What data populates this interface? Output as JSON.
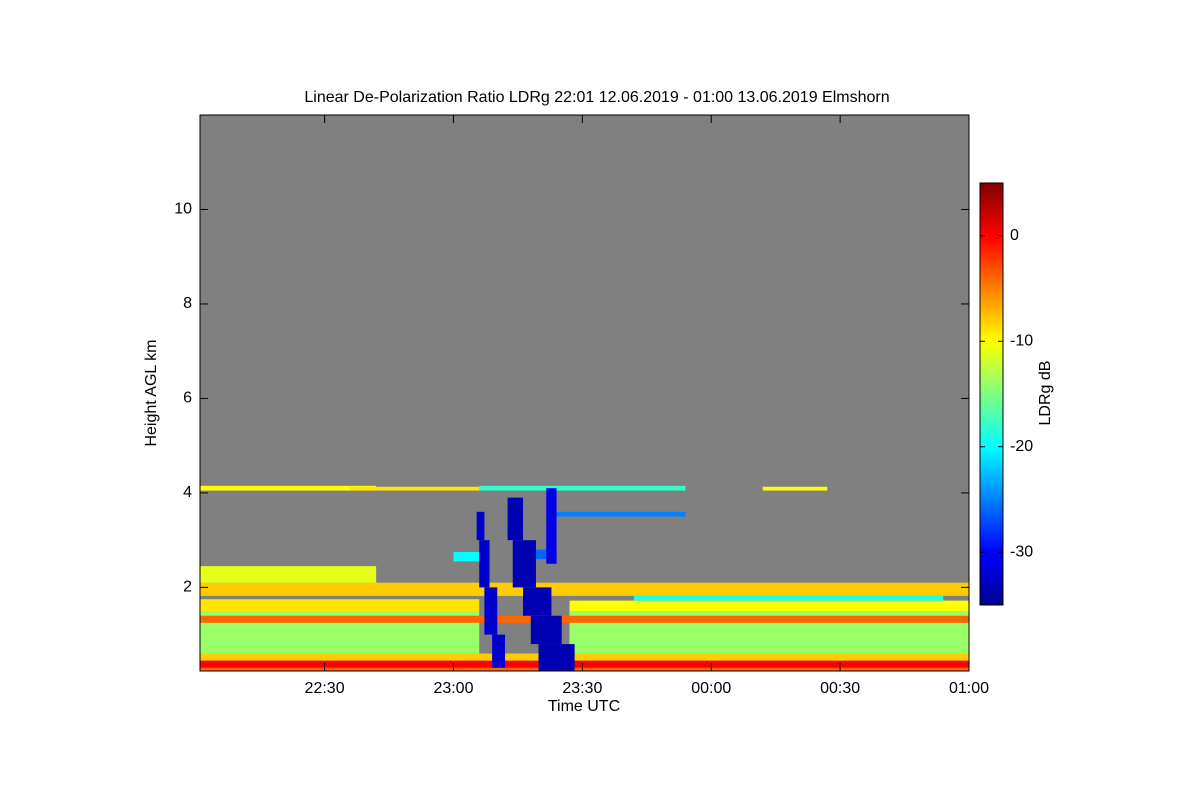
{
  "chart_data": {
    "type": "heatmap",
    "title": "Linear De-Polarization Ratio LDRg   22:01 12.06.2019 - 01:00 13.06.2019 Elmshorn",
    "xlabel": "Time UTC",
    "ylabel": "Height AGL km",
    "colorbar_label": "LDRg dB",
    "colormap": "jet",
    "background": "#808080",
    "xlim": [
      22.0167,
      25
    ],
    "xticks": [
      {
        "value": 22.5,
        "label": "22:30"
      },
      {
        "value": 23,
        "label": "23:00"
      },
      {
        "value": 23.5,
        "label": "23:30"
      },
      {
        "value": 24,
        "label": "00:00"
      },
      {
        "value": 24.5,
        "label": "00:30"
      },
      {
        "value": 25,
        "label": "01:00"
      }
    ],
    "ylim": [
      0.23,
      12
    ],
    "yticks": [
      2,
      4,
      6,
      8,
      10
    ],
    "zlim": [
      -35,
      5
    ],
    "zticks": [
      0,
      -10,
      -20,
      -30
    ],
    "cells": [
      {
        "x0": 22.0167,
        "x1": 25,
        "y0": 0.23,
        "y1": 0.3,
        "value": -4
      },
      {
        "x0": 22.0167,
        "x1": 25,
        "y0": 0.3,
        "y1": 0.45,
        "value": 0
      },
      {
        "x0": 22.0167,
        "x1": 25,
        "y0": 0.45,
        "y1": 0.6,
        "value": -8
      },
      {
        "x0": 22.0167,
        "x1": 23.1,
        "y0": 0.6,
        "y1": 1.5,
        "value": -14
      },
      {
        "x0": 23.45,
        "x1": 25,
        "y0": 0.6,
        "y1": 1.5,
        "value": -14
      },
      {
        "x0": 22.0167,
        "x1": 25,
        "y0": 1.25,
        "y1": 1.4,
        "value": -4
      },
      {
        "x0": 22.0167,
        "x1": 23.1,
        "y0": 1.5,
        "y1": 1.75,
        "value": -9
      },
      {
        "x0": 23.45,
        "x1": 25,
        "y0": 1.5,
        "y1": 1.72,
        "value": -10
      },
      {
        "x0": 23.7,
        "x1": 24.9,
        "y0": 1.72,
        "y1": 1.82,
        "value": -19
      },
      {
        "x0": 22.0167,
        "x1": 25,
        "y0": 1.82,
        "y1": 2.1,
        "value": -8
      },
      {
        "x0": 22.0167,
        "x1": 22.7,
        "y0": 2.1,
        "y1": 2.45,
        "value": -11
      },
      {
        "x0": 22.0167,
        "x1": 22.7,
        "y0": 4.05,
        "y1": 4.15,
        "value": -10
      },
      {
        "x0": 22.6,
        "x1": 23.1,
        "y0": 4.05,
        "y1": 4.13,
        "value": -9
      },
      {
        "x0": 23.1,
        "x1": 23.9,
        "y0": 4.05,
        "y1": 4.15,
        "value": -18
      },
      {
        "x0": 24.2,
        "x1": 24.45,
        "y0": 4.05,
        "y1": 4.13,
        "value": -10
      },
      {
        "x0": 23.4,
        "x1": 23.9,
        "y0": 3.5,
        "y1": 3.6,
        "value": -25
      },
      {
        "x0": 23.0,
        "x1": 23.1,
        "y0": 2.55,
        "y1": 2.75,
        "value": -20
      },
      {
        "x0": 23.25,
        "x1": 23.4,
        "y0": 2.6,
        "y1": 2.8,
        "value": -26
      },
      {
        "x0": 23.09,
        "x1": 23.12,
        "y0": 3.0,
        "y1": 3.6,
        "value": -32
      },
      {
        "x0": 23.1,
        "x1": 23.14,
        "y0": 2.0,
        "y1": 3.0,
        "value": -32
      },
      {
        "x0": 23.12,
        "x1": 23.17,
        "y0": 1.0,
        "y1": 2.0,
        "value": -32
      },
      {
        "x0": 23.15,
        "x1": 23.2,
        "y0": 0.3,
        "y1": 1.0,
        "value": -32
      },
      {
        "x0": 23.21,
        "x1": 23.27,
        "y0": 3.0,
        "y1": 3.9,
        "value": -33
      },
      {
        "x0": 23.23,
        "x1": 23.32,
        "y0": 2.0,
        "y1": 3.0,
        "value": -33
      },
      {
        "x0": 23.27,
        "x1": 23.38,
        "y0": 1.4,
        "y1": 2.0,
        "value": -33
      },
      {
        "x0": 23.3,
        "x1": 23.42,
        "y0": 0.8,
        "y1": 1.4,
        "value": -33
      },
      {
        "x0": 23.33,
        "x1": 23.47,
        "y0": 0.23,
        "y1": 0.8,
        "value": -33
      },
      {
        "x0": 23.36,
        "x1": 23.4,
        "y0": 2.5,
        "y1": 4.1,
        "value": -31
      }
    ]
  }
}
